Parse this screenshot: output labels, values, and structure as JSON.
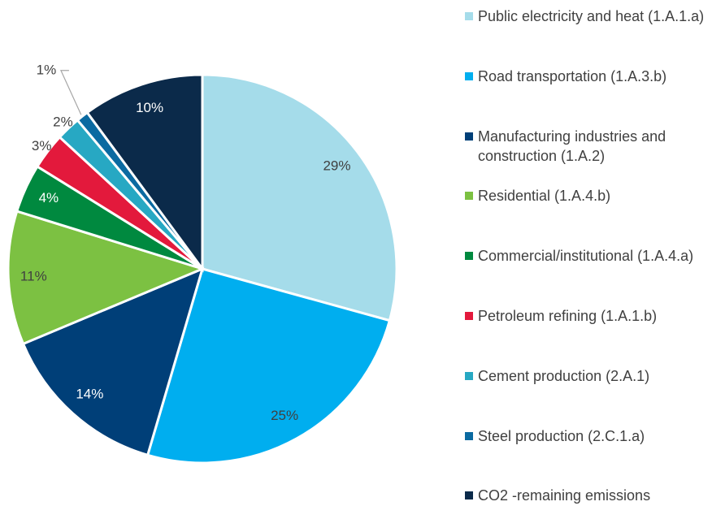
{
  "chart_data": {
    "type": "pie",
    "categories": [
      "Public electricity and heat (1.A.1.a)",
      "Road transportation (1.A.3.b)",
      "Manufacturing industries and construction (1.A.2)",
      "Residential (1.A.4.b)",
      "Commercial/institutional (1.A.4.a)",
      "Petroleum refining (1.A.1.b)",
      "Cement production (2.A.1)",
      "Steel production (2.C.1.a)",
      "CO2  -remaining emissions"
    ],
    "values": [
      29,
      25,
      14,
      11,
      4,
      3,
      2,
      1,
      10
    ],
    "value_labels": [
      "29%",
      "25%",
      "14%",
      "11%",
      "4%",
      "3%",
      "2%",
      "1%",
      "10%"
    ],
    "colors": [
      "#a5dcea",
      "#00aeef",
      "#003f78",
      "#7cc142",
      "#00893f",
      "#e3193c",
      "#27a8c3",
      "#0b6aa1",
      "#0b2a4a"
    ],
    "legend": "right"
  }
}
